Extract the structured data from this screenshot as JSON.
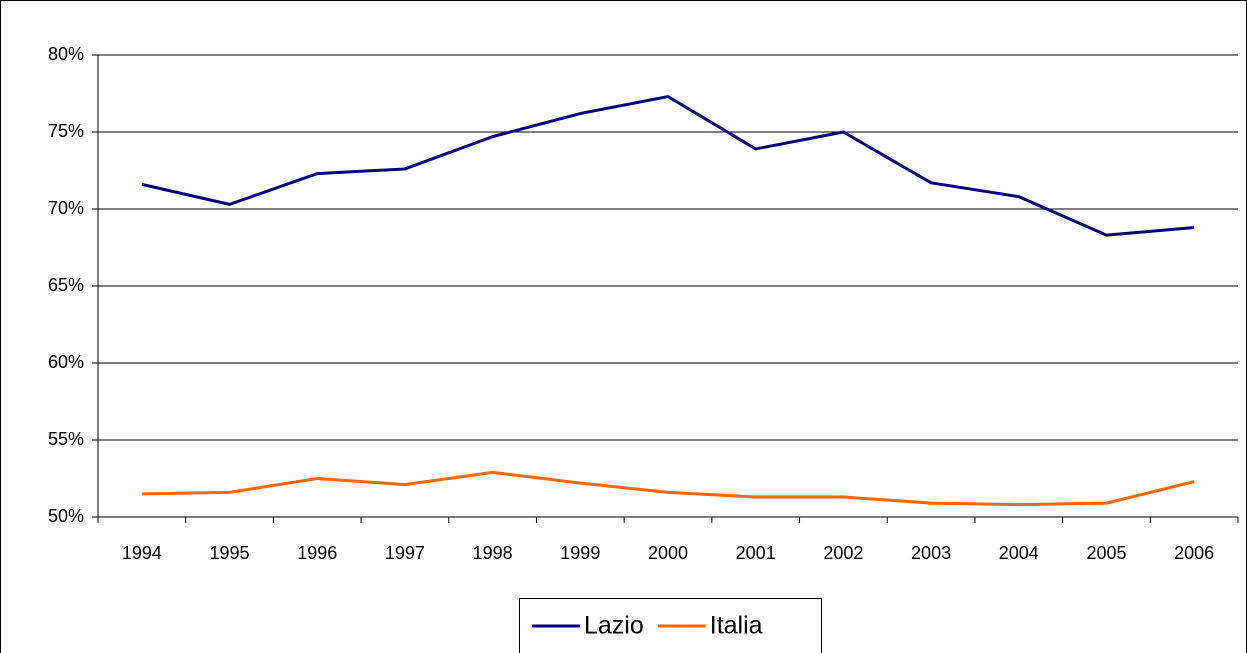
{
  "chart_data": {
    "type": "line",
    "categories": [
      "1994",
      "1995",
      "1996",
      "1997",
      "1998",
      "1999",
      "2000",
      "2001",
      "2002",
      "2003",
      "2004",
      "2005",
      "2006"
    ],
    "series": [
      {
        "name": "Lazio",
        "color": "#000080",
        "values": [
          71.6,
          70.3,
          72.3,
          72.6,
          74.7,
          76.2,
          77.3,
          73.9,
          75.0,
          71.7,
          70.8,
          68.3,
          68.8
        ]
      },
      {
        "name": "Italia",
        "color": "#ff6600",
        "values": [
          51.5,
          51.6,
          52.5,
          52.1,
          52.9,
          52.2,
          51.6,
          51.3,
          51.3,
          50.9,
          50.8,
          50.9,
          52.3
        ]
      }
    ],
    "ylim": [
      50,
      80
    ],
    "yticks": [
      {
        "value": 50,
        "label": "50%"
      },
      {
        "value": 55,
        "label": "55%"
      },
      {
        "value": 60,
        "label": "60%"
      },
      {
        "value": 65,
        "label": "65%"
      },
      {
        "value": 70,
        "label": "70%"
      },
      {
        "value": 75,
        "label": "75%"
      },
      {
        "value": 80,
        "label": "80%"
      }
    ],
    "grid": true,
    "legend": "bottom"
  }
}
